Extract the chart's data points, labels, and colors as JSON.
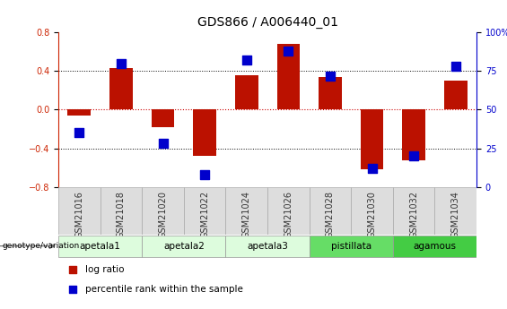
{
  "title": "GDS866 / A006440_01",
  "samples": [
    "GSM21016",
    "GSM21018",
    "GSM21020",
    "GSM21022",
    "GSM21024",
    "GSM21026",
    "GSM21028",
    "GSM21030",
    "GSM21032",
    "GSM21034"
  ],
  "log_ratio": [
    -0.06,
    0.43,
    -0.18,
    -0.48,
    0.36,
    0.68,
    0.34,
    -0.62,
    -0.52,
    0.3
  ],
  "percentile": [
    35,
    80,
    28,
    8,
    82,
    88,
    72,
    12,
    20,
    78
  ],
  "ylim": [
    -0.8,
    0.8
  ],
  "yticks": [
    -0.8,
    -0.4,
    0.0,
    0.4,
    0.8
  ],
  "right_yticks": [
    0,
    25,
    50,
    75,
    100
  ],
  "right_ylim": [
    0,
    100
  ],
  "bar_color": "#bb1100",
  "dot_color": "#0000cc",
  "zero_line_color": "#cc0000",
  "groups": [
    {
      "name": "apetala1",
      "start": 0,
      "end": 2,
      "color": "#ddfcdd"
    },
    {
      "name": "apetala2",
      "start": 2,
      "end": 4,
      "color": "#ddfcdd"
    },
    {
      "name": "apetala3",
      "start": 4,
      "end": 6,
      "color": "#ddfcdd"
    },
    {
      "name": "pistillata",
      "start": 6,
      "end": 8,
      "color": "#66dd66"
    },
    {
      "name": "agamous",
      "start": 8,
      "end": 10,
      "color": "#44cc44"
    }
  ],
  "bar_width": 0.55,
  "dot_size": 45,
  "title_fontsize": 10,
  "tick_fontsize": 7,
  "label_fontsize": 7.5
}
